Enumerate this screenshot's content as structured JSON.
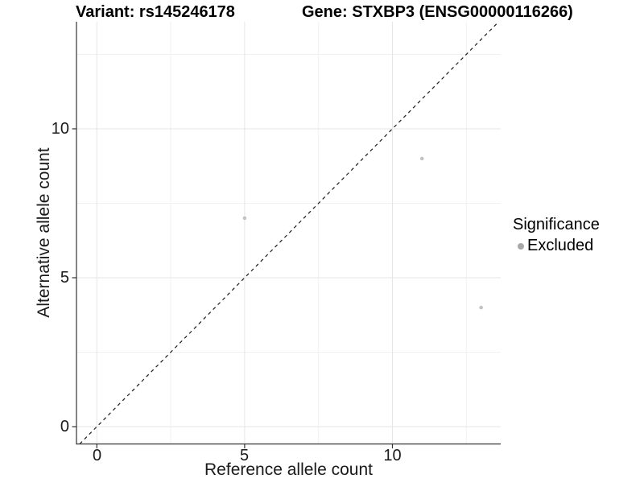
{
  "header": {
    "variant_title": "Variant: rs145246178",
    "gene_title": "Gene: STXBP3 (ENSG00000116266)"
  },
  "chart_data": {
    "type": "scatter",
    "title_left": "Variant: rs145246178",
    "title_right": "Gene: STXBP3 (ENSG00000116266)",
    "xlabel": "Reference allele count",
    "ylabel": "Alternative allele count",
    "xlim": [
      -0.68,
      13.68
    ],
    "ylim": [
      -0.6,
      13.6
    ],
    "x_ticks": [
      0,
      5,
      10
    ],
    "y_ticks": [
      0,
      5,
      10
    ],
    "x_minor_ticks": [
      2.5,
      7.5,
      12.5
    ],
    "y_minor_ticks": [
      2.5,
      7.5,
      12.5
    ],
    "grid": "major and minor gridlines, white panel background",
    "reference_line": {
      "type": "identity y=x",
      "style": "dashed",
      "color": "#1a1a1a"
    },
    "series": [
      {
        "name": "Excluded",
        "color": "#c3c3c3",
        "points": [
          {
            "x": 5,
            "y": 7
          },
          {
            "x": 11,
            "y": 9
          },
          {
            "x": 13,
            "y": 4
          }
        ]
      }
    ],
    "legend": {
      "title": "Significance",
      "position": "right",
      "items": [
        {
          "label": "Excluded",
          "color": "#a8a8a8"
        }
      ]
    }
  },
  "colors": {
    "background": "#ffffff",
    "point": "#c3c3c3",
    "legend_dot": "#a8a8a8",
    "grid_major": "#e6e6e6",
    "grid_minor": "#f1f1f1",
    "axis_line": "#333333",
    "tick_mark": "#333333",
    "dashed_line": "#1a1a1a"
  }
}
